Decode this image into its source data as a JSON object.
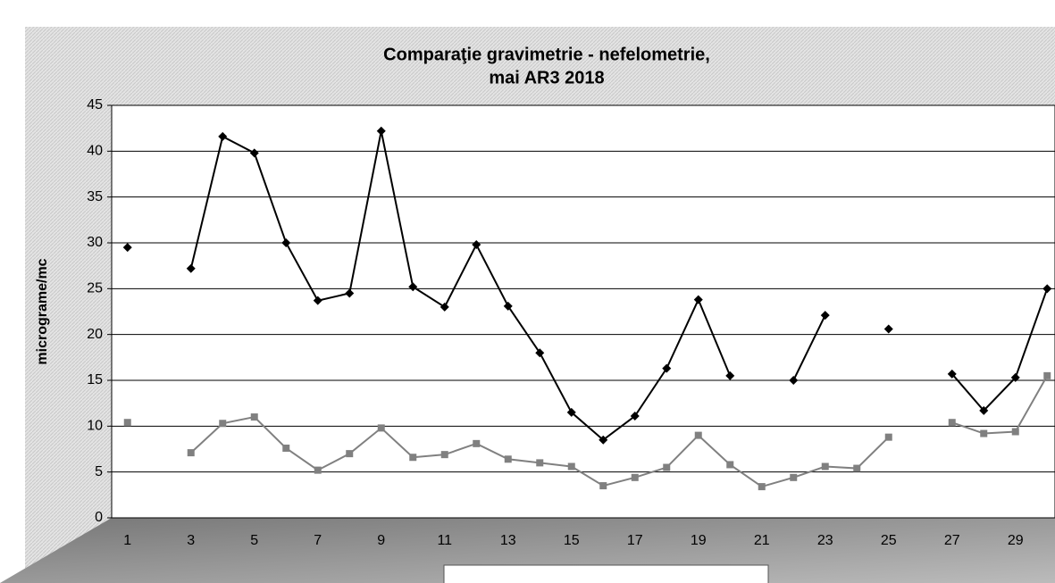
{
  "chart_data": {
    "type": "line",
    "title": [
      "Comparaţie gravimetrie - nefelometrie,",
      "mai AR3 2018"
    ],
    "y_label": "micrograme/mc",
    "categories": [
      "1",
      null,
      "3",
      null,
      "5",
      null,
      "7",
      null,
      "9",
      null,
      "11",
      null,
      "13",
      null,
      "15",
      null,
      "17",
      null,
      "19",
      null,
      "21",
      null,
      "23",
      null,
      "25",
      null,
      "27",
      null,
      "29",
      null
    ],
    "series": [
      {
        "color": "#000000",
        "marker": "diamond",
        "values": [
          29.5,
          null,
          27.2,
          41.6,
          39.8,
          30.0,
          23.7,
          24.5,
          42.2,
          25.2,
          23.0,
          29.8,
          23.1,
          18.0,
          11.5,
          8.5,
          11.1,
          16.3,
          23.8,
          15.5,
          null,
          15.0,
          22.1,
          null,
          20.6,
          null,
          15.7,
          11.7,
          15.3,
          25.0
        ]
      },
      {
        "color": "#808080",
        "marker": "square",
        "values": [
          10.4,
          null,
          7.1,
          10.3,
          11.0,
          7.6,
          5.2,
          7.0,
          9.8,
          6.6,
          6.9,
          8.1,
          6.4,
          6.0,
          5.6,
          3.5,
          4.4,
          5.5,
          9.0,
          5.8,
          3.4,
          4.4,
          5.6,
          5.4,
          8.8,
          null,
          10.4,
          9.2,
          9.4,
          15.5
        ]
      }
    ],
    "ylim": [
      0,
      45
    ],
    "yticks": [
      0,
      5,
      10,
      15,
      20,
      25,
      30,
      35,
      40,
      45
    ],
    "grid": true
  }
}
